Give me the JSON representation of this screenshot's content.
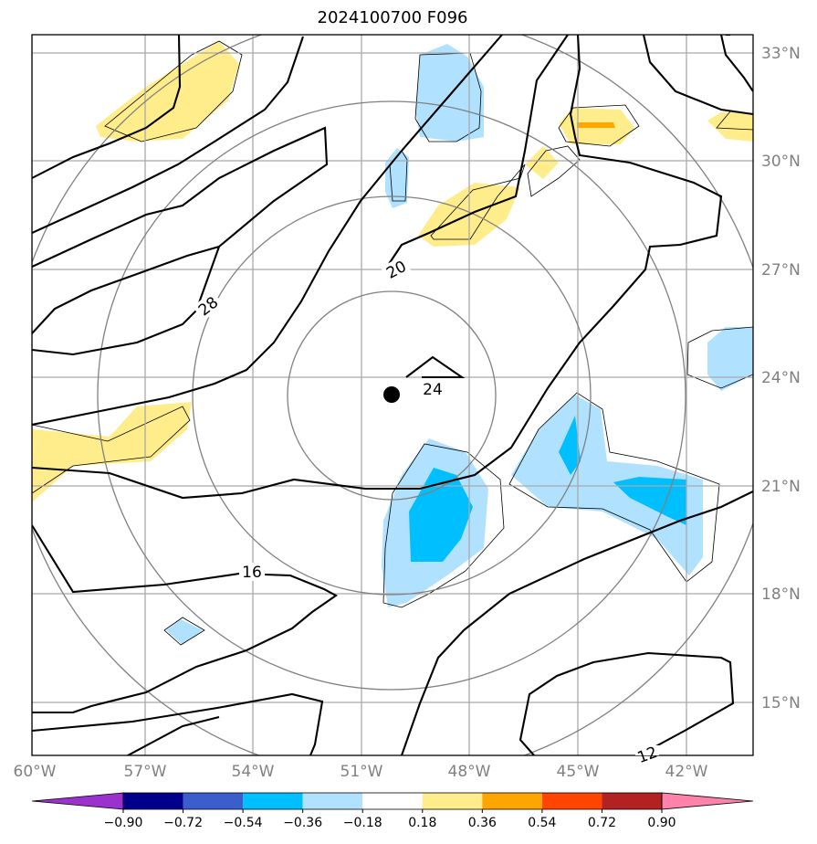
{
  "title": "2024100700 F096",
  "lat_labels": [
    "33°N",
    "30°N",
    "27°N",
    "24°N",
    "21°N",
    "18°N",
    "15°N"
  ],
  "lon_labels": [
    "60°W",
    "57°W",
    "54°W",
    "51°W",
    "48°W",
    "45°W",
    "42°W"
  ],
  "contour_labels": [
    "28",
    "20",
    "24",
    "16",
    "12"
  ],
  "colorbar": {
    "ticks": [
      "−0.90",
      "−0.72",
      "−0.54",
      "−0.36",
      "−0.18",
      "0.18",
      "0.36",
      "0.54",
      "0.72",
      "0.90"
    ],
    "colors": [
      "#9a32cd",
      "#00008b",
      "#3a5fcd",
      "#00bfff",
      "#b0e2ff",
      "#ffffff",
      "#ffec8b",
      "#ffa500",
      "#ff4500",
      "#b22222",
      "#ff82ab"
    ]
  },
  "marker": "storm-center-dot"
}
